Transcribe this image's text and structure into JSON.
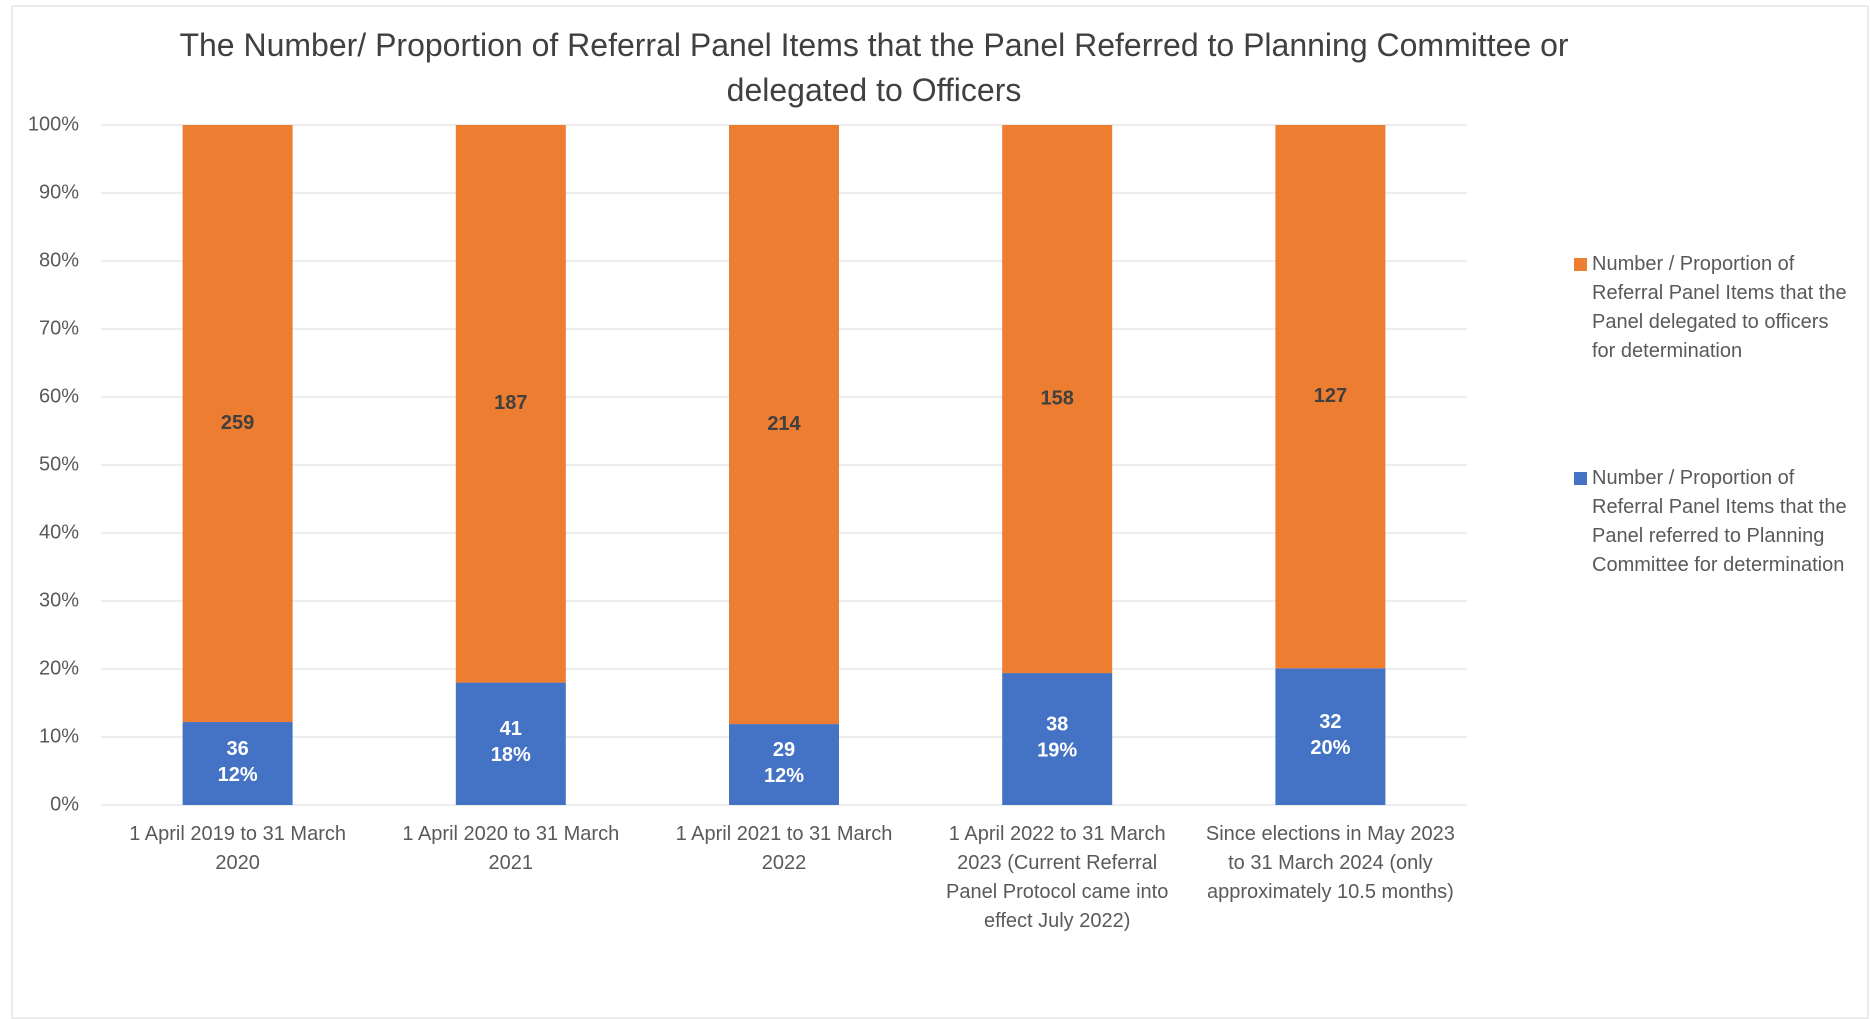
{
  "chart_data": {
    "type": "bar",
    "stacked": true,
    "title": "The Number/ Proportion of Referral Panel Items that the Panel Referred to Planning Committee or delegated to Officers",
    "categories": [
      "1 April 2019 to 31 March 2020",
      "1 April 2020 to 31 March 2021",
      "1 April 2021 to 31 March 2022",
      "1 April 2022 to 31 March 2023 (Current Referral Panel Protocol came into effect July 2022)",
      "Since elections in May 2023 to 31 March 2024 (only approximately 10.5 months)"
    ],
    "series": [
      {
        "name": "Number / Proportion of Referral Panel Items that the Panel referred to Planning Committee for determination",
        "color": "#4472c4",
        "values": [
          12.2,
          18.0,
          11.9,
          19.4,
          20.1
        ],
        "value_labels": [
          "12%",
          "18%",
          "12%",
          "19%",
          "20%"
        ],
        "counts": [
          36,
          41,
          29,
          38,
          32
        ]
      },
      {
        "name": "Number / Proportion of Referral Panel Items that the Panel delegated to officers for determination",
        "color": "#ed7d31",
        "values": [
          87.8,
          82.0,
          88.1,
          80.6,
          79.9
        ],
        "counts": [
          259,
          187,
          214,
          158,
          127
        ]
      }
    ],
    "ylim": [
      0,
      100
    ],
    "yticks": [
      {
        "value": 0,
        "label": "0%"
      },
      {
        "value": 10,
        "label": "10%"
      },
      {
        "value": 20,
        "label": "20%"
      },
      {
        "value": 30,
        "label": "30%"
      },
      {
        "value": 40,
        "label": "40%"
      },
      {
        "value": 50,
        "label": "50%"
      },
      {
        "value": 60,
        "label": "60%"
      },
      {
        "value": 70,
        "label": "70%"
      },
      {
        "value": 80,
        "label": "80%"
      },
      {
        "value": 90,
        "label": "90%"
      },
      {
        "value": 100,
        "label": "100%"
      }
    ],
    "grid": true,
    "legend": "right"
  }
}
